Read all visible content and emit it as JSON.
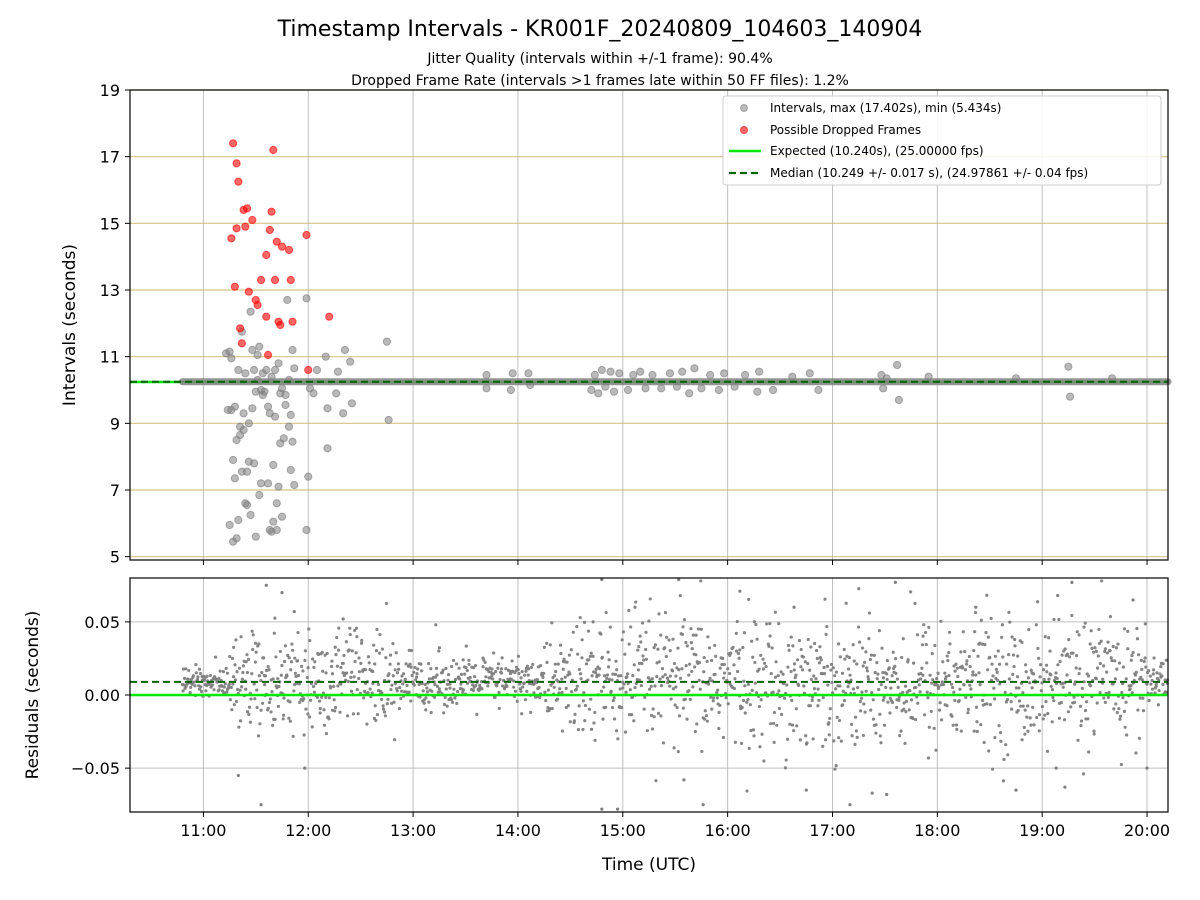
{
  "figure": {
    "title": "Timestamp Intervals - KR001F_20240809_104603_140904",
    "subtitle_1": "Jitter Quality (intervals within +/-1 frame): 90.4%",
    "subtitle_2": "Dropped Frame Rate (intervals >1 frames late within 50 FF files): 1.2%"
  },
  "colors": {
    "intervals": "#808080",
    "dropped": "#ff0000",
    "expected": "#00e600",
    "median": "#006400",
    "grid_top": "#c8b060",
    "grid": "#b0b0b0"
  },
  "chart_data": [
    {
      "type": "scatter",
      "xlabel": "",
      "ylabel": "Intervals (seconds)",
      "xlim": [
        "10:18",
        "20:12"
      ],
      "ylim": [
        4.9,
        19
      ],
      "yticks": [
        "5",
        "7",
        "9",
        "11",
        "13",
        "15",
        "17",
        "19"
      ],
      "ytick_values": [
        5,
        7,
        9,
        11,
        13,
        15,
        17,
        19
      ],
      "xticks": [
        "11:00",
        "12:00",
        "13:00",
        "14:00",
        "15:00",
        "16:00",
        "17:00",
        "18:00",
        "19:00",
        "20:00"
      ],
      "grid": true,
      "legend_position": "top-right",
      "legend": {
        "intervals": "Intervals, max (17.402s), min (5.434s)",
        "dropped": "Possible Dropped Frames",
        "expected": "Expected (10.240s), (25.00000 fps)",
        "median": "Median (10.249 +/- 0.017 s), (24.97861 +/- 0.04 fps)"
      },
      "expected_value": 10.24,
      "median_value": 10.249,
      "steady_interval_range": [
        "10:48",
        "20:12"
      ],
      "series": [
        {
          "name": "Possible Dropped Frames",
          "points": [
            [
              "11:16",
              14.55
            ],
            [
              "11:17",
              17.4
            ],
            [
              "11:18",
              13.1
            ],
            [
              "11:19",
              16.8
            ],
            [
              "11:19",
              14.85
            ],
            [
              "11:20",
              16.25
            ],
            [
              "11:21",
              11.85
            ],
            [
              "11:22",
              11.4
            ],
            [
              "11:23",
              15.4
            ],
            [
              "11:24",
              14.9
            ],
            [
              "11:25",
              15.45
            ],
            [
              "11:26",
              12.95
            ],
            [
              "11:28",
              15.1
            ],
            [
              "11:30",
              12.7
            ],
            [
              "11:31",
              12.55
            ],
            [
              "11:33",
              13.3
            ],
            [
              "11:36",
              14.05
            ],
            [
              "11:36",
              12.2
            ],
            [
              "11:37",
              11.05
            ],
            [
              "11:38",
              14.8
            ],
            [
              "11:39",
              15.35
            ],
            [
              "11:40",
              17.2
            ],
            [
              "11:41",
              13.3
            ],
            [
              "11:42",
              14.45
            ],
            [
              "11:43",
              12.05
            ],
            [
              "11:44",
              11.95
            ],
            [
              "11:45",
              14.3
            ],
            [
              "11:49",
              14.2
            ],
            [
              "11:50",
              13.3
            ],
            [
              "11:51",
              12.05
            ],
            [
              "11:59",
              14.65
            ],
            [
              "12:00",
              10.6
            ],
            [
              "12:12",
              12.2
            ]
          ]
        },
        {
          "name": "Intervals",
          "points": [
            [
              "11:13",
              11.1
            ],
            [
              "11:14",
              9.4
            ],
            [
              "11:15",
              11.15
            ],
            [
              "11:15",
              5.95
            ],
            [
              "11:16",
              10.95
            ],
            [
              "11:16",
              9.4
            ],
            [
              "11:17",
              7.9
            ],
            [
              "11:17",
              5.45
            ],
            [
              "11:18",
              7.35
            ],
            [
              "11:18",
              9.5
            ],
            [
              "11:19",
              8.5
            ],
            [
              "11:19",
              5.55
            ],
            [
              "11:20",
              10.6
            ],
            [
              "11:20",
              6.1
            ],
            [
              "11:21",
              8.65
            ],
            [
              "11:21",
              8.9
            ],
            [
              "11:22",
              11.75
            ],
            [
              "11:22",
              7.55
            ],
            [
              "11:23",
              8.8
            ],
            [
              "11:23",
              9.3
            ],
            [
              "11:24",
              6.6
            ],
            [
              "11:24",
              10.5
            ],
            [
              "11:25",
              7.55
            ],
            [
              "11:25",
              6.55
            ],
            [
              "11:26",
              9.0
            ],
            [
              "11:26",
              7.85
            ],
            [
              "11:27",
              12.35
            ],
            [
              "11:27",
              6.25
            ],
            [
              "11:28",
              11.2
            ],
            [
              "11:28",
              9.45
            ],
            [
              "11:29",
              10.6
            ],
            [
              "11:29",
              7.8
            ],
            [
              "11:30",
              9.95
            ],
            [
              "11:30",
              5.6
            ],
            [
              "11:31",
              11.05
            ],
            [
              "11:31",
              10.3
            ],
            [
              "11:32",
              6.85
            ],
            [
              "11:32",
              11.3
            ],
            [
              "11:33",
              10.0
            ],
            [
              "11:33",
              7.2
            ],
            [
              "11:34",
              9.85
            ],
            [
              "11:34",
              10.5
            ],
            [
              "11:35",
              9.95
            ],
            [
              "11:36",
              10.6
            ],
            [
              "11:37",
              7.2
            ],
            [
              "11:37",
              9.5
            ],
            [
              "11:38",
              9.3
            ],
            [
              "11:38",
              5.8
            ],
            [
              "11:39",
              10.4
            ],
            [
              "11:39",
              5.75
            ],
            [
              "11:40",
              6.05
            ],
            [
              "11:40",
              7.75
            ],
            [
              "11:41",
              10.6
            ],
            [
              "11:41",
              9.2
            ],
            [
              "11:42",
              5.8
            ],
            [
              "11:42",
              6.6
            ],
            [
              "11:43",
              10.8
            ],
            [
              "11:43",
              7.1
            ],
            [
              "11:44",
              8.4
            ],
            [
              "11:44",
              9.9
            ],
            [
              "11:45",
              10.05
            ],
            [
              "11:45",
              6.2
            ],
            [
              "11:46",
              8.55
            ],
            [
              "11:47",
              9.85
            ],
            [
              "11:47",
              9.55
            ],
            [
              "11:48",
              12.7
            ],
            [
              "11:49",
              8.9
            ],
            [
              "11:49",
              10.3
            ],
            [
              "11:50",
              7.6
            ],
            [
              "11:50",
              9.25
            ],
            [
              "11:51",
              11.2
            ],
            [
              "11:51",
              8.45
            ],
            [
              "11:52",
              10.65
            ],
            [
              "11:52",
              7.15
            ],
            [
              "11:59",
              12.75
            ],
            [
              "11:59",
              5.8
            ],
            [
              "12:00",
              7.4
            ],
            [
              "12:01",
              10.05
            ],
            [
              "12:03",
              9.9
            ],
            [
              "12:05",
              10.6
            ],
            [
              "12:10",
              11.0
            ],
            [
              "12:11",
              9.45
            ],
            [
              "12:11",
              8.25
            ],
            [
              "12:16",
              9.9
            ],
            [
              "12:17",
              10.55
            ],
            [
              "12:20",
              9.3
            ],
            [
              "12:21",
              11.2
            ],
            [
              "12:24",
              10.85
            ],
            [
              "12:25",
              9.6
            ],
            [
              "12:45",
              11.45
            ],
            [
              "12:46",
              9.1
            ],
            [
              "13:42",
              10.05
            ],
            [
              "13:42",
              10.45
            ],
            [
              "13:56",
              10.0
            ],
            [
              "13:57",
              10.5
            ],
            [
              "14:06",
              10.5
            ],
            [
              "14:07",
              10.15
            ],
            [
              "14:42",
              10.0
            ],
            [
              "14:44",
              10.45
            ],
            [
              "14:46",
              9.9
            ],
            [
              "14:48",
              10.6
            ],
            [
              "14:50",
              10.1
            ],
            [
              "14:53",
              10.55
            ],
            [
              "14:55",
              9.95
            ],
            [
              "14:58",
              10.5
            ],
            [
              "15:03",
              10.0
            ],
            [
              "15:06",
              10.45
            ],
            [
              "15:10",
              10.55
            ],
            [
              "15:13",
              10.05
            ],
            [
              "15:17",
              10.45
            ],
            [
              "15:22",
              10.05
            ],
            [
              "15:27",
              10.5
            ],
            [
              "15:31",
              10.1
            ],
            [
              "15:34",
              10.55
            ],
            [
              "15:38",
              9.9
            ],
            [
              "15:41",
              10.65
            ],
            [
              "15:45",
              10.05
            ],
            [
              "15:50",
              10.45
            ],
            [
              "15:55",
              10.0
            ],
            [
              "15:58",
              10.5
            ],
            [
              "16:04",
              10.1
            ],
            [
              "16:10",
              10.45
            ],
            [
              "16:17",
              9.95
            ],
            [
              "16:18",
              10.55
            ],
            [
              "16:26",
              10.0
            ],
            [
              "16:37",
              10.4
            ],
            [
              "16:47",
              10.5
            ],
            [
              "16:52",
              10.0
            ],
            [
              "17:28",
              10.45
            ],
            [
              "17:29",
              10.05
            ],
            [
              "17:31",
              10.35
            ],
            [
              "17:37",
              10.75
            ],
            [
              "17:38",
              9.7
            ],
            [
              "17:55",
              10.4
            ],
            [
              "18:45",
              10.35
            ],
            [
              "19:15",
              10.7
            ],
            [
              "19:16",
              9.8
            ],
            [
              "19:40",
              10.35
            ]
          ]
        }
      ]
    },
    {
      "type": "scatter",
      "xlabel": "Time (UTC)",
      "ylabel": "Residuals (seconds)",
      "xlim": [
        "10:18",
        "20:12"
      ],
      "ylim": [
        -0.08,
        0.08
      ],
      "yticks": [
        "−0.05",
        "0.00",
        "0.05"
      ],
      "ytick_values": [
        -0.05,
        0.0,
        0.05
      ],
      "xticks": [
        "11:00",
        "12:00",
        "13:00",
        "14:00",
        "15:00",
        "16:00",
        "17:00",
        "18:00",
        "19:00",
        "20:00"
      ],
      "grid": true,
      "expected_value": 0.0,
      "median_value": 0.009,
      "x_range": [
        "10:48",
        "20:12"
      ],
      "spread": [
        {
          "to": "11:15",
          "sd": 0.006
        },
        {
          "to": "11:40",
          "sd": 0.016
        },
        {
          "to": "12:45",
          "sd": 0.02
        },
        {
          "to": "13:00",
          "sd": 0.012
        },
        {
          "to": "14:15",
          "sd": 0.01
        },
        {
          "to": "14:30",
          "sd": 0.018
        },
        {
          "to": "20:00",
          "sd": 0.025
        },
        {
          "to": "20:12",
          "sd": 0.008
        }
      ],
      "outliers": [
        [
          "11:20",
          -0.055
        ],
        [
          "11:33",
          -0.075
        ],
        [
          "11:36",
          0.075
        ],
        [
          "11:45",
          0.07
        ],
        [
          "11:52",
          0.057
        ],
        [
          "11:58",
          -0.05
        ],
        [
          "12:20",
          0.052
        ],
        [
          "13:13",
          0.048
        ],
        [
          "14:43",
          0.05
        ],
        [
          "14:48",
          0.079
        ],
        [
          "14:48",
          -0.078
        ],
        [
          "14:57",
          -0.078
        ],
        [
          "15:07",
          0.06
        ],
        [
          "15:32",
          0.079
        ],
        [
          "15:35",
          -0.058
        ],
        [
          "15:46",
          -0.075
        ],
        [
          "16:07",
          0.071
        ],
        [
          "16:38",
          0.06
        ],
        [
          "16:45",
          -0.065
        ],
        [
          "17:10",
          -0.075
        ],
        [
          "17:31",
          -0.068
        ],
        [
          "17:36",
          0.077
        ],
        [
          "18:22",
          0.06
        ],
        [
          "18:45",
          -0.065
        ],
        [
          "19:08",
          -0.05
        ],
        [
          "19:13",
          -0.063
        ],
        [
          "19:17",
          0.077
        ],
        [
          "19:52",
          0.065
        ],
        [
          "20:00",
          -0.05
        ]
      ]
    }
  ]
}
